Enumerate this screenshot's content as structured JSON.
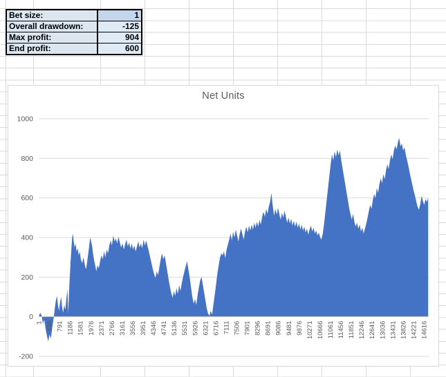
{
  "stats_table": {
    "rows": [
      {
        "label": "Bet size:",
        "value": "1",
        "highlight": true
      },
      {
        "label": "Overall drawdown:",
        "value": "-125",
        "highlight": false
      },
      {
        "label": "Max profit:",
        "value": "904",
        "highlight": false
      },
      {
        "label": "End profit:",
        "value": "600",
        "highlight": false
      }
    ]
  },
  "chart_data": {
    "type": "area",
    "title": "Net Units",
    "xlabel": "",
    "ylabel": "",
    "xlim": [
      1,
      14800
    ],
    "ylim": [
      -200,
      1000
    ],
    "y_ticks": [
      -200,
      0,
      200,
      400,
      600,
      800,
      1000
    ],
    "x_tick_step": 395,
    "x_tick_labels": [
      "1",
      "396",
      "791",
      "1186",
      "1581",
      "1976",
      "2371",
      "2766",
      "3161",
      "3556",
      "3951",
      "4346",
      "4741",
      "5136",
      "5531",
      "5926",
      "6321",
      "6716",
      "7111",
      "7506",
      "7901",
      "8296",
      "8691",
      "9086",
      "9481",
      "9876",
      "10271",
      "10666",
      "11061",
      "11456",
      "11851",
      "12246",
      "12641",
      "13036",
      "13431",
      "13826",
      "14221",
      "14616"
    ],
    "grid": true,
    "legend": false,
    "colors": {
      "area": "#4472C4",
      "gridline": "#d9d9d9",
      "axis_line": "#c6c6c6",
      "axis_text": "#595959",
      "title": "#595959",
      "chart_border": "#d9d9d9"
    },
    "series": [
      {
        "name": "Net Units",
        "points": [
          [
            1,
            0
          ],
          [
            60,
            20
          ],
          [
            110,
            5
          ],
          [
            160,
            -35
          ],
          [
            210,
            -15
          ],
          [
            260,
            -60
          ],
          [
            310,
            -95
          ],
          [
            360,
            -125
          ],
          [
            410,
            -90
          ],
          [
            460,
            -110
          ],
          [
            510,
            -60
          ],
          [
            560,
            -15
          ],
          [
            610,
            40
          ],
          [
            650,
            80
          ],
          [
            690,
            105
          ],
          [
            730,
            60
          ],
          [
            770,
            30
          ],
          [
            810,
            70
          ],
          [
            850,
            100
          ],
          [
            890,
            45
          ],
          [
            930,
            20
          ],
          [
            970,
            60
          ],
          [
            1010,
            35
          ],
          [
            1050,
            90
          ],
          [
            1090,
            140
          ],
          [
            1120,
            15
          ],
          [
            1150,
            120
          ],
          [
            1180,
            200
          ],
          [
            1210,
            280
          ],
          [
            1240,
            340
          ],
          [
            1270,
            400
          ],
          [
            1300,
            420
          ],
          [
            1330,
            380
          ],
          [
            1360,
            350
          ],
          [
            1400,
            370
          ],
          [
            1440,
            330
          ],
          [
            1480,
            345
          ],
          [
            1520,
            310
          ],
          [
            1560,
            330
          ],
          [
            1600,
            290
          ],
          [
            1650,
            270
          ],
          [
            1700,
            300
          ],
          [
            1750,
            260
          ],
          [
            1800,
            240
          ],
          [
            1850,
            290
          ],
          [
            1900,
            340
          ],
          [
            1950,
            400
          ],
          [
            1990,
            380
          ],
          [
            2030,
            355
          ],
          [
            2070,
            310
          ],
          [
            2110,
            280
          ],
          [
            2150,
            255
          ],
          [
            2190,
            230
          ],
          [
            2230,
            260
          ],
          [
            2280,
            245
          ],
          [
            2330,
            280
          ],
          [
            2380,
            310
          ],
          [
            2430,
            290
          ],
          [
            2480,
            330
          ],
          [
            2530,
            300
          ],
          [
            2580,
            340
          ],
          [
            2630,
            320
          ],
          [
            2680,
            360
          ],
          [
            2730,
            385
          ],
          [
            2780,
            360
          ],
          [
            2830,
            410
          ],
          [
            2880,
            380
          ],
          [
            2930,
            395
          ],
          [
            2980,
            370
          ],
          [
            3030,
            405
          ],
          [
            3080,
            375
          ],
          [
            3130,
            350
          ],
          [
            3180,
            370
          ],
          [
            3230,
            340
          ],
          [
            3280,
            365
          ],
          [
            3330,
            390
          ],
          [
            3380,
            355
          ],
          [
            3430,
            375
          ],
          [
            3480,
            345
          ],
          [
            3530,
            370
          ],
          [
            3580,
            340
          ],
          [
            3630,
            360
          ],
          [
            3680,
            330
          ],
          [
            3730,
            355
          ],
          [
            3780,
            380
          ],
          [
            3830,
            350
          ],
          [
            3880,
            370
          ],
          [
            3930,
            345
          ],
          [
            3980,
            390
          ],
          [
            4030,
            360
          ],
          [
            4080,
            385
          ],
          [
            4130,
            355
          ],
          [
            4180,
            330
          ],
          [
            4230,
            300
          ],
          [
            4280,
            270
          ],
          [
            4330,
            240
          ],
          [
            4380,
            215
          ],
          [
            4430,
            195
          ],
          [
            4480,
            230
          ],
          [
            4530,
            210
          ],
          [
            4580,
            250
          ],
          [
            4630,
            290
          ],
          [
            4680,
            320
          ],
          [
            4730,
            290
          ],
          [
            4780,
            310
          ],
          [
            4830,
            270
          ],
          [
            4880,
            230
          ],
          [
            4930,
            190
          ],
          [
            4980,
            150
          ],
          [
            5030,
            120
          ],
          [
            5080,
            95
          ],
          [
            5130,
            130
          ],
          [
            5180,
            105
          ],
          [
            5230,
            145
          ],
          [
            5280,
            115
          ],
          [
            5330,
            160
          ],
          [
            5380,
            130
          ],
          [
            5430,
            170
          ],
          [
            5480,
            200
          ],
          [
            5530,
            230
          ],
          [
            5580,
            255
          ],
          [
            5630,
            280
          ],
          [
            5680,
            240
          ],
          [
            5730,
            200
          ],
          [
            5780,
            150
          ],
          [
            5830,
            100
          ],
          [
            5880,
            65
          ],
          [
            5930,
            90
          ],
          [
            5980,
            60
          ],
          [
            6030,
            110
          ],
          [
            6080,
            150
          ],
          [
            6130,
            185
          ],
          [
            6180,
            200
          ],
          [
            6230,
            160
          ],
          [
            6280,
            120
          ],
          [
            6330,
            80
          ],
          [
            6380,
            40
          ],
          [
            6430,
            15
          ],
          [
            6480,
            5
          ],
          [
            6530,
            30
          ],
          [
            6580,
            10
          ],
          [
            6630,
            60
          ],
          [
            6680,
            110
          ],
          [
            6730,
            160
          ],
          [
            6780,
            220
          ],
          [
            6830,
            260
          ],
          [
            6880,
            300
          ],
          [
            6930,
            320
          ],
          [
            6980,
            310
          ],
          [
            7030,
            330
          ],
          [
            7080,
            295
          ],
          [
            7130,
            340
          ],
          [
            7180,
            365
          ],
          [
            7230,
            390
          ],
          [
            7280,
            420
          ],
          [
            7330,
            385
          ],
          [
            7380,
            430
          ],
          [
            7430,
            400
          ],
          [
            7480,
            440
          ],
          [
            7530,
            410
          ],
          [
            7580,
            380
          ],
          [
            7630,
            420
          ],
          [
            7680,
            445
          ],
          [
            7730,
            415
          ],
          [
            7780,
            390
          ],
          [
            7830,
            430
          ],
          [
            7880,
            455
          ],
          [
            7930,
            425
          ],
          [
            7980,
            460
          ],
          [
            8030,
            435
          ],
          [
            8080,
            465
          ],
          [
            8130,
            440
          ],
          [
            8180,
            475
          ],
          [
            8230,
            450
          ],
          [
            8280,
            480
          ],
          [
            8330,
            455
          ],
          [
            8380,
            490
          ],
          [
            8430,
            465
          ],
          [
            8480,
            505
          ],
          [
            8530,
            530
          ],
          [
            8580,
            505
          ],
          [
            8630,
            545
          ],
          [
            8680,
            520
          ],
          [
            8730,
            555
          ],
          [
            8780,
            580
          ],
          [
            8830,
            625
          ],
          [
            8880,
            560
          ],
          [
            8930,
            510
          ],
          [
            8980,
            545
          ],
          [
            9030,
            515
          ],
          [
            9080,
            550
          ],
          [
            9130,
            520
          ],
          [
            9180,
            490
          ],
          [
            9230,
            525
          ],
          [
            9280,
            500
          ],
          [
            9330,
            535
          ],
          [
            9380,
            505
          ],
          [
            9430,
            475
          ],
          [
            9480,
            500
          ],
          [
            9530,
            470
          ],
          [
            9580,
            495
          ],
          [
            9630,
            460
          ],
          [
            9680,
            485
          ],
          [
            9730,
            455
          ],
          [
            9780,
            480
          ],
          [
            9830,
            450
          ],
          [
            9880,
            470
          ],
          [
            9930,
            440
          ],
          [
            9980,
            465
          ],
          [
            10030,
            435
          ],
          [
            10080,
            455
          ],
          [
            10130,
            425
          ],
          [
            10180,
            445
          ],
          [
            10230,
            415
          ],
          [
            10280,
            440
          ],
          [
            10330,
            460
          ],
          [
            10380,
            430
          ],
          [
            10430,
            450
          ],
          [
            10480,
            420
          ],
          [
            10530,
            435
          ],
          [
            10580,
            410
          ],
          [
            10630,
            425
          ],
          [
            10680,
            400
          ],
          [
            10730,
            390
          ],
          [
            10780,
            420
          ],
          [
            10830,
            470
          ],
          [
            10880,
            530
          ],
          [
            10930,
            590
          ],
          [
            10980,
            650
          ],
          [
            11030,
            710
          ],
          [
            11080,
            770
          ],
          [
            11130,
            820
          ],
          [
            11180,
            790
          ],
          [
            11230,
            835
          ],
          [
            11280,
            805
          ],
          [
            11330,
            845
          ],
          [
            11380,
            815
          ],
          [
            11430,
            840
          ],
          [
            11480,
            790
          ],
          [
            11530,
            750
          ],
          [
            11580,
            710
          ],
          [
            11630,
            670
          ],
          [
            11680,
            630
          ],
          [
            11730,
            590
          ],
          [
            11780,
            550
          ],
          [
            11830,
            520
          ],
          [
            11880,
            490
          ],
          [
            11930,
            520
          ],
          [
            11980,
            480
          ],
          [
            12030,
            455
          ],
          [
            12080,
            475
          ],
          [
            12130,
            445
          ],
          [
            12180,
            465
          ],
          [
            12230,
            430
          ],
          [
            12280,
            450
          ],
          [
            12330,
            420
          ],
          [
            12380,
            445
          ],
          [
            12430,
            470
          ],
          [
            12480,
            500
          ],
          [
            12530,
            535
          ],
          [
            12580,
            565
          ],
          [
            12630,
            545
          ],
          [
            12680,
            590
          ],
          [
            12730,
            620
          ],
          [
            12780,
            600
          ],
          [
            12830,
            650
          ],
          [
            12880,
            625
          ],
          [
            12930,
            670
          ],
          [
            12980,
            700
          ],
          [
            13030,
            675
          ],
          [
            13080,
            720
          ],
          [
            13130,
            695
          ],
          [
            13180,
            740
          ],
          [
            13230,
            770
          ],
          [
            13280,
            745
          ],
          [
            13330,
            790
          ],
          [
            13380,
            820
          ],
          [
            13430,
            795
          ],
          [
            13480,
            840
          ],
          [
            13530,
            865
          ],
          [
            13580,
            845
          ],
          [
            13630,
            880
          ],
          [
            13680,
            904
          ],
          [
            13730,
            860
          ],
          [
            13780,
            875
          ],
          [
            13830,
            840
          ],
          [
            13880,
            855
          ],
          [
            13930,
            820
          ],
          [
            13980,
            790
          ],
          [
            14030,
            760
          ],
          [
            14080,
            725
          ],
          [
            14130,
            695
          ],
          [
            14180,
            665
          ],
          [
            14230,
            635
          ],
          [
            14280,
            610
          ],
          [
            14330,
            580
          ],
          [
            14380,
            555
          ],
          [
            14430,
            540
          ],
          [
            14480,
            570
          ],
          [
            14530,
            610
          ],
          [
            14580,
            585
          ],
          [
            14630,
            565
          ],
          [
            14680,
            595
          ],
          [
            14730,
            580
          ],
          [
            14780,
            600
          ]
        ]
      }
    ]
  }
}
